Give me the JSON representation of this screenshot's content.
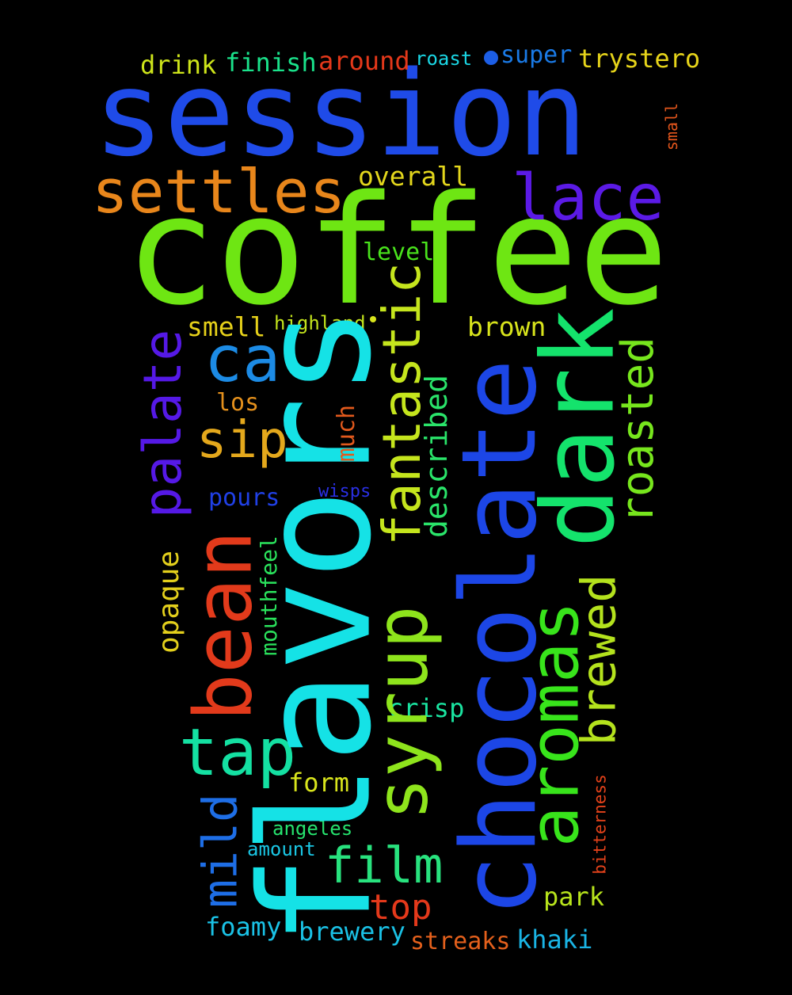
{
  "words": [
    {
      "id": "session",
      "text": "session",
      "color": "#1f4be8"
    },
    {
      "id": "coffee",
      "text": "coffee",
      "color": "#6ee613"
    },
    {
      "id": "flavors",
      "text": "flavors",
      "color": "#15e2e6"
    },
    {
      "id": "chocolate",
      "text": "chocolate",
      "color": "#1c46e6"
    },
    {
      "id": "dark",
      "text": "dark",
      "color": "#14e36c"
    },
    {
      "id": "aromas",
      "text": "aromas",
      "color": "#38e41b"
    },
    {
      "id": "syrup",
      "text": "syrup",
      "color": "#8ee41c"
    },
    {
      "id": "fantastic",
      "text": "fantastic",
      "color": "#c5e51d"
    },
    {
      "id": "bean",
      "text": "bean",
      "color": "#e23a1b"
    },
    {
      "id": "settles",
      "text": "settles",
      "color": "#e8861b"
    },
    {
      "id": "lace",
      "text": "lace",
      "color": "#5b1ae6"
    },
    {
      "id": "brewed",
      "text": "brewed",
      "color": "#b4e21d"
    },
    {
      "id": "roasted",
      "text": "roasted",
      "color": "#77e61d"
    },
    {
      "id": "palate",
      "text": "palate",
      "color": "#5519e6"
    },
    {
      "id": "ca",
      "text": "ca",
      "color": "#1c8be5"
    },
    {
      "id": "sip",
      "text": "sip",
      "color": "#e4a81c"
    },
    {
      "id": "tap",
      "text": "tap",
      "color": "#14e0a2"
    },
    {
      "id": "film",
      "text": "film",
      "color": "#28e27e"
    },
    {
      "id": "mild",
      "text": "mild",
      "color": "#1e6ee6"
    },
    {
      "id": "described",
      "text": "described",
      "color": "#2ae46a"
    },
    {
      "id": "top",
      "text": "top",
      "color": "#e4391b"
    },
    {
      "id": "opaque",
      "text": "opaque",
      "color": "#e3cf1c"
    },
    {
      "id": "overall",
      "text": "overall",
      "color": "#e3d61c"
    },
    {
      "id": "brown",
      "text": "brown",
      "color": "#d8e41c"
    },
    {
      "id": "smell",
      "text": "smell",
      "color": "#e6d11a"
    },
    {
      "id": "level",
      "text": "level",
      "color": "#49e21c"
    },
    {
      "id": "trystero",
      "text": "trystero",
      "color": "#e6d41a"
    },
    {
      "id": "super",
      "text": "super",
      "color": "#1a7ae6"
    },
    {
      "id": "finish",
      "text": "finish",
      "color": "#1ae28b"
    },
    {
      "id": "around",
      "text": "around",
      "color": "#e4381a"
    },
    {
      "id": "drink",
      "text": "drink",
      "color": "#cde41a"
    },
    {
      "id": "roast",
      "text": "roast",
      "color": "#1ad6e4"
    },
    {
      "id": "highland",
      "text": "highland",
      "color": "#c3e31c"
    },
    {
      "id": "los",
      "text": "los",
      "color": "#e4901c"
    },
    {
      "id": "much",
      "text": "much",
      "color": "#e2591c"
    },
    {
      "id": "pours",
      "text": "pours",
      "color": "#2040e6"
    },
    {
      "id": "wisps",
      "text": "wisps",
      "color": "#2a30e4"
    },
    {
      "id": "mouthfeel",
      "text": "mouthfeel",
      "color": "#2ae25c"
    },
    {
      "id": "crisp",
      "text": "crisp",
      "color": "#1ae3a0"
    },
    {
      "id": "form",
      "text": "form",
      "color": "#d8e41c"
    },
    {
      "id": "angeles",
      "text": "angeles",
      "color": "#26e36e"
    },
    {
      "id": "amount",
      "text": "amount",
      "color": "#1ac6e4"
    },
    {
      "id": "park",
      "text": "park",
      "color": "#b8e41c"
    },
    {
      "id": "foamy",
      "text": "foamy",
      "color": "#1ac2e6"
    },
    {
      "id": "brewery",
      "text": "brewery",
      "color": "#1ac0e4"
    },
    {
      "id": "streaks",
      "text": "streaks",
      "color": "#e4601c"
    },
    {
      "id": "khaki",
      "text": "khaki",
      "color": "#1ab4e4"
    },
    {
      "id": "bitterness",
      "text": "bitterness",
      "color": "#e4421a"
    },
    {
      "id": "small",
      "text": "small",
      "color": "#e4561c"
    }
  ],
  "dots": [
    {
      "id": "dot-blue",
      "color": "#1c5ee6"
    },
    {
      "id": "dot-yellow",
      "color": "#d8e41c"
    }
  ]
}
